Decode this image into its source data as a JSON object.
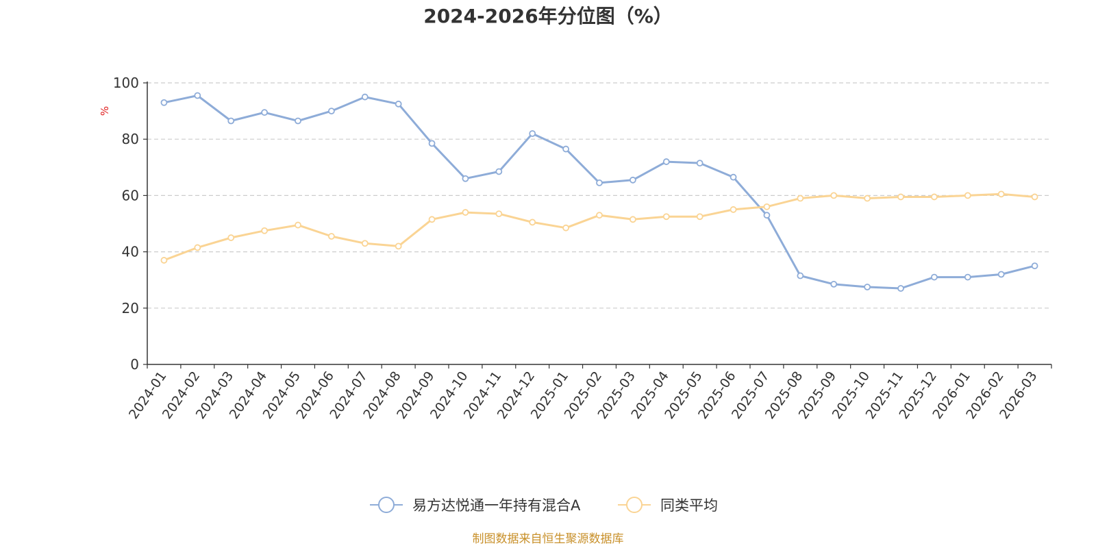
{
  "chart_data": {
    "type": "line",
    "title": "2024-2026年分位图（%）",
    "ylabel": "%",
    "ylim": [
      0,
      100
    ],
    "yticks": [
      "0",
      "20",
      "40",
      "60",
      "80",
      "100"
    ],
    "grid": true,
    "legend_position": "bottom-center",
    "categories": [
      "2024-01",
      "2024-02",
      "2024-03",
      "2024-04",
      "2024-05",
      "2024-06",
      "2024-07",
      "2024-08",
      "2024-09",
      "2024-10",
      "2024-11",
      "2024-12",
      "2025-01",
      "2025-02",
      "2025-03",
      "2025-04",
      "2025-05",
      "2025-06",
      "2025-07",
      "2025-08",
      "2025-09",
      "2025-10",
      "2025-11",
      "2025-12",
      "2026-01",
      "2026-02",
      "2026-03"
    ],
    "series": [
      {
        "name": "易方达悦通一年持有混合A",
        "color": "#8eacd8",
        "values": [
          93,
          95.5,
          86.5,
          89.5,
          86.5,
          90,
          95,
          92.5,
          78.5,
          66,
          68.5,
          82,
          76.5,
          64.5,
          65.5,
          72,
          71.5,
          66.5,
          53,
          31.5,
          28.5,
          27.5,
          27,
          31,
          31,
          32,
          35
        ]
      },
      {
        "name": "同类平均",
        "color": "#fad494",
        "values": [
          37,
          41.5,
          45,
          47.5,
          49.5,
          45.5,
          43,
          42,
          51.5,
          54,
          53.5,
          50.5,
          48.5,
          53,
          51.5,
          52.5,
          52.5,
          55,
          56,
          59,
          60,
          59,
          59.5,
          59.5,
          60,
          60.5,
          59.5
        ]
      }
    ]
  },
  "footer": {
    "source": "制图数据来自恒生聚源数据库"
  }
}
